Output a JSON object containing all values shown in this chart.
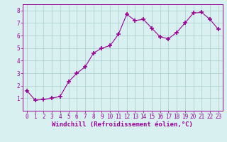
{
  "x": [
    0,
    1,
    2,
    3,
    4,
    5,
    6,
    7,
    8,
    9,
    10,
    11,
    12,
    13,
    14,
    15,
    16,
    17,
    18,
    19,
    20,
    21,
    22,
    23
  ],
  "y": [
    1.6,
    0.85,
    0.9,
    1.0,
    1.15,
    2.3,
    3.0,
    3.5,
    4.6,
    5.0,
    5.2,
    6.1,
    7.7,
    7.2,
    7.3,
    6.6,
    5.9,
    5.75,
    6.25,
    7.0,
    7.8,
    7.85,
    7.3,
    6.5
  ],
  "line_color": "#990099",
  "marker": "+",
  "marker_size": 4,
  "marker_lw": 1.2,
  "bg_color": "#d8f0f0",
  "grid_color": "#aacccc",
  "xlabel": "Windchill (Refroidissement éolien,°C)",
  "xlabel_color": "#990099",
  "xlim": [
    -0.5,
    23.5
  ],
  "ylim": [
    0,
    8.5
  ],
  "yticks": [
    1,
    2,
    3,
    4,
    5,
    6,
    7,
    8
  ],
  "xticks": [
    0,
    1,
    2,
    3,
    4,
    5,
    6,
    7,
    8,
    9,
    10,
    11,
    12,
    13,
    14,
    15,
    16,
    17,
    18,
    19,
    20,
    21,
    22,
    23
  ],
  "tick_color": "#990099",
  "spine_color": "#990099",
  "tick_label_size": 5.5,
  "xlabel_size": 6.5,
  "line_width": 0.8
}
